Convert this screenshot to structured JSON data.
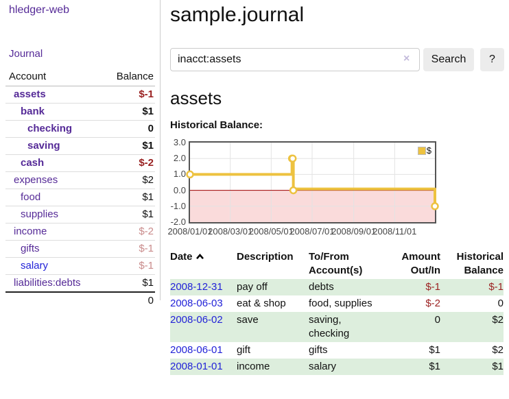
{
  "colors": {
    "link_visited": "#552a97",
    "link_unvisited": "#2222d8",
    "negative_strong": "#992121",
    "negative_faint": "#c98b8b",
    "row_stripe_green": "#ddeedd",
    "button_bg": "#ececec"
  },
  "sidebar": {
    "brand": "hledger-web",
    "journal_link": "Journal",
    "accounts": {
      "col_account": "Account",
      "col_balance": "Balance",
      "rows": [
        {
          "name": "assets",
          "balance": "$-1"
        },
        {
          "name": "bank",
          "balance": "$1"
        },
        {
          "name": "checking",
          "balance": "0"
        },
        {
          "name": "saving",
          "balance": "$1"
        },
        {
          "name": "cash",
          "balance": "$-2"
        },
        {
          "name": "expenses",
          "balance": "$2"
        },
        {
          "name": "food",
          "balance": "$1"
        },
        {
          "name": "supplies",
          "balance": "$1"
        },
        {
          "name": "income",
          "balance": "$-2"
        },
        {
          "name": "gifts",
          "balance": "$-1"
        },
        {
          "name": "salary",
          "balance": "$-1"
        },
        {
          "name": "liabilities:debts",
          "balance": "$1"
        }
      ],
      "total": "0"
    }
  },
  "main": {
    "title": "sample.journal",
    "search": {
      "value": "inacct:assets",
      "clear_icon": "×",
      "button": "Search",
      "help": "?"
    },
    "heading": "assets",
    "chart_title": "Historical Balance:"
  },
  "chart_data": {
    "type": "line",
    "title": "Historical Balance:",
    "series": [
      {
        "name": "$",
        "color": "#edc240",
        "step": true,
        "points": [
          {
            "date": "2008-01-01",
            "value": 1
          },
          {
            "date": "2008-06-01",
            "value": 2
          },
          {
            "date": "2008-06-02",
            "value": 2
          },
          {
            "date": "2008-06-03",
            "value": 0
          },
          {
            "date": "2008-12-31",
            "value": -1
          }
        ]
      }
    ],
    "xlim": [
      "2008-01-01",
      "2008-12-31"
    ],
    "ylim": [
      -2,
      3
    ],
    "yticks": [
      3.0,
      2.0,
      1.0,
      0.0,
      -1.0,
      -2.0
    ],
    "xticks": [
      "2008/01/01",
      "2008/03/01",
      "2008/05/01",
      "2008/07/01",
      "2008/09/01",
      "2008/11/01"
    ],
    "grid": true,
    "negative_fill": "#fadbdb",
    "zero_line_color": "#a00000",
    "legend": {
      "position": "top-right",
      "items": [
        {
          "label": "$",
          "color": "#edc240"
        }
      ]
    }
  },
  "register": {
    "columns": {
      "date": "Date",
      "description": "Description",
      "accounts": "To/From Account(s)",
      "amount": "Amount Out/In",
      "balance": "Historical Balance"
    },
    "rows": [
      {
        "date": "2008-12-31",
        "description": "pay off",
        "accounts": "debts",
        "amount": "$-1",
        "balance": "$-1"
      },
      {
        "date": "2008-06-03",
        "description": "eat & shop",
        "accounts": "food, supplies",
        "amount": "$-2",
        "balance": "0"
      },
      {
        "date": "2008-06-02",
        "description": "save",
        "accounts": "saving, checking",
        "amount": "0",
        "balance": "$2"
      },
      {
        "date": "2008-06-01",
        "description": "gift",
        "accounts": "gifts",
        "amount": "$1",
        "balance": "$2"
      },
      {
        "date": "2008-01-01",
        "description": "income",
        "accounts": "salary",
        "amount": "$1",
        "balance": "$1"
      }
    ]
  }
}
